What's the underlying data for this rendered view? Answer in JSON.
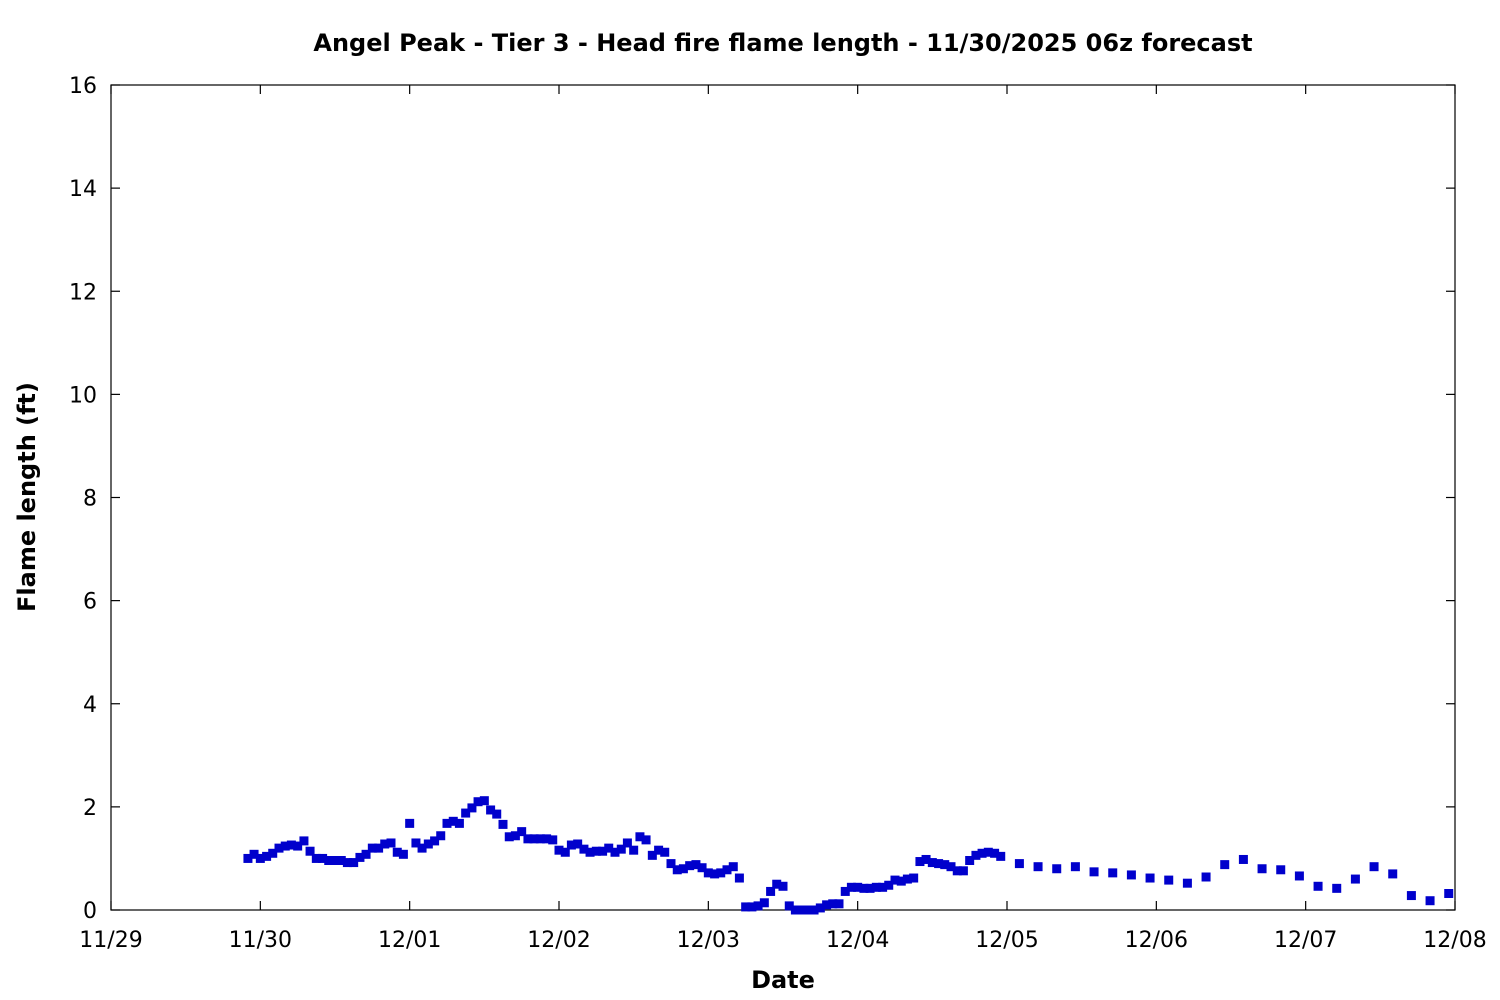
{
  "chart_data": {
    "type": "scatter",
    "title": "Angel Peak - Tier 3 - Head fire flame length - 11/30/2025 06z forecast",
    "xlabel": "Date",
    "ylabel": "Flame length (ft)",
    "x_unit": "days",
    "xlim": [
      0,
      9
    ],
    "ylim": [
      0,
      16
    ],
    "x_ticks": [
      {
        "value": 0,
        "label": "11/29"
      },
      {
        "value": 1,
        "label": "11/30"
      },
      {
        "value": 2,
        "label": "12/01"
      },
      {
        "value": 3,
        "label": "12/02"
      },
      {
        "value": 4,
        "label": "12/03"
      },
      {
        "value": 5,
        "label": "12/04"
      },
      {
        "value": 6,
        "label": "12/05"
      },
      {
        "value": 7,
        "label": "12/06"
      },
      {
        "value": 8,
        "label": "12/07"
      },
      {
        "value": 9,
        "label": "12/08"
      }
    ],
    "y_ticks": [
      0,
      2,
      4,
      6,
      8,
      10,
      12,
      14,
      16
    ],
    "grid": false,
    "legend": "none",
    "marker_color": "#0000cc",
    "series": [
      {
        "name": "",
        "points": [
          [
            0.917,
            1.0
          ],
          [
            0.958,
            1.08
          ],
          [
            1.0,
            1.0
          ],
          [
            1.042,
            1.04
          ],
          [
            1.083,
            1.1
          ],
          [
            1.125,
            1.2
          ],
          [
            1.167,
            1.24
          ],
          [
            1.208,
            1.26
          ],
          [
            1.25,
            1.24
          ],
          [
            1.292,
            1.34
          ],
          [
            1.333,
            1.14
          ],
          [
            1.375,
            1.0
          ],
          [
            1.417,
            1.0
          ],
          [
            1.458,
            0.96
          ],
          [
            1.5,
            0.96
          ],
          [
            1.542,
            0.96
          ],
          [
            1.583,
            0.92
          ],
          [
            1.625,
            0.92
          ],
          [
            1.667,
            1.02
          ],
          [
            1.708,
            1.08
          ],
          [
            1.75,
            1.2
          ],
          [
            1.792,
            1.2
          ],
          [
            1.833,
            1.28
          ],
          [
            1.875,
            1.3
          ],
          [
            1.917,
            1.12
          ],
          [
            1.958,
            1.08
          ],
          [
            2.0,
            1.68
          ],
          [
            2.042,
            1.3
          ],
          [
            2.083,
            1.2
          ],
          [
            2.125,
            1.28
          ],
          [
            2.167,
            1.34
          ],
          [
            2.208,
            1.44
          ],
          [
            2.25,
            1.68
          ],
          [
            2.292,
            1.72
          ],
          [
            2.333,
            1.68
          ],
          [
            2.375,
            1.88
          ],
          [
            2.417,
            1.98
          ],
          [
            2.458,
            2.1
          ],
          [
            2.5,
            2.12
          ],
          [
            2.542,
            1.94
          ],
          [
            2.583,
            1.86
          ],
          [
            2.625,
            1.66
          ],
          [
            2.667,
            1.42
          ],
          [
            2.708,
            1.44
          ],
          [
            2.75,
            1.52
          ],
          [
            2.792,
            1.38
          ],
          [
            2.833,
            1.38
          ],
          [
            2.875,
            1.38
          ],
          [
            2.917,
            1.38
          ],
          [
            2.958,
            1.36
          ],
          [
            3.0,
            1.16
          ],
          [
            3.042,
            1.12
          ],
          [
            3.083,
            1.26
          ],
          [
            3.125,
            1.28
          ],
          [
            3.167,
            1.18
          ],
          [
            3.208,
            1.12
          ],
          [
            3.25,
            1.14
          ],
          [
            3.292,
            1.14
          ],
          [
            3.333,
            1.2
          ],
          [
            3.375,
            1.12
          ],
          [
            3.417,
            1.18
          ],
          [
            3.458,
            1.3
          ],
          [
            3.5,
            1.16
          ],
          [
            3.542,
            1.42
          ],
          [
            3.583,
            1.36
          ],
          [
            3.625,
            1.06
          ],
          [
            3.667,
            1.16
          ],
          [
            3.708,
            1.12
          ],
          [
            3.75,
            0.9
          ],
          [
            3.792,
            0.78
          ],
          [
            3.833,
            0.8
          ],
          [
            3.875,
            0.86
          ],
          [
            3.917,
            0.88
          ],
          [
            3.958,
            0.82
          ],
          [
            4.0,
            0.72
          ],
          [
            4.042,
            0.7
          ],
          [
            4.083,
            0.72
          ],
          [
            4.125,
            0.78
          ],
          [
            4.167,
            0.84
          ],
          [
            4.208,
            0.62
          ],
          [
            4.25,
            0.06
          ],
          [
            4.292,
            0.06
          ],
          [
            4.333,
            0.08
          ],
          [
            4.375,
            0.14
          ],
          [
            4.417,
            0.36
          ],
          [
            4.458,
            0.5
          ],
          [
            4.5,
            0.46
          ],
          [
            4.542,
            0.08
          ],
          [
            4.583,
            0.0
          ],
          [
            4.625,
            0.0
          ],
          [
            4.667,
            0.0
          ],
          [
            4.708,
            0.0
          ],
          [
            4.75,
            0.04
          ],
          [
            4.792,
            0.1
          ],
          [
            4.833,
            0.12
          ],
          [
            4.875,
            0.12
          ],
          [
            4.917,
            0.36
          ],
          [
            4.958,
            0.44
          ],
          [
            5.0,
            0.44
          ],
          [
            5.042,
            0.42
          ],
          [
            5.083,
            0.42
          ],
          [
            5.125,
            0.44
          ],
          [
            5.167,
            0.44
          ],
          [
            5.208,
            0.48
          ],
          [
            5.25,
            0.58
          ],
          [
            5.292,
            0.56
          ],
          [
            5.333,
            0.6
          ],
          [
            5.375,
            0.62
          ],
          [
            5.417,
            0.94
          ],
          [
            5.458,
            0.98
          ],
          [
            5.5,
            0.92
          ],
          [
            5.542,
            0.9
          ],
          [
            5.583,
            0.88
          ],
          [
            5.625,
            0.84
          ],
          [
            5.667,
            0.76
          ],
          [
            5.708,
            0.76
          ],
          [
            5.75,
            0.96
          ],
          [
            5.792,
            1.06
          ],
          [
            5.833,
            1.1
          ],
          [
            5.875,
            1.12
          ],
          [
            5.917,
            1.1
          ],
          [
            5.958,
            1.04
          ],
          [
            6.083,
            0.9
          ],
          [
            6.208,
            0.84
          ],
          [
            6.333,
            0.8
          ],
          [
            6.458,
            0.84
          ],
          [
            6.583,
            0.74
          ],
          [
            6.708,
            0.72
          ],
          [
            6.833,
            0.68
          ],
          [
            6.958,
            0.62
          ],
          [
            7.083,
            0.58
          ],
          [
            7.208,
            0.52
          ],
          [
            7.333,
            0.64
          ],
          [
            7.458,
            0.88
          ],
          [
            7.583,
            0.98
          ],
          [
            7.708,
            0.8
          ],
          [
            7.833,
            0.78
          ],
          [
            7.958,
            0.66
          ],
          [
            8.083,
            0.46
          ],
          [
            8.208,
            0.42
          ],
          [
            8.333,
            0.6
          ],
          [
            8.458,
            0.84
          ],
          [
            8.583,
            0.7
          ],
          [
            8.708,
            0.28
          ],
          [
            8.833,
            0.18
          ],
          [
            8.958,
            0.32
          ]
        ]
      }
    ]
  }
}
